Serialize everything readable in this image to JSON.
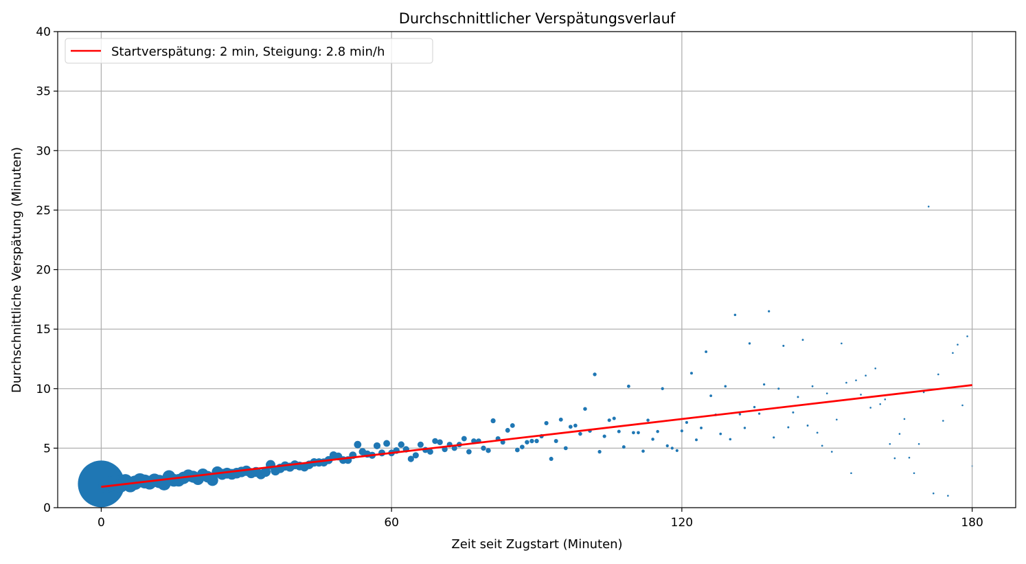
{
  "chart_data": {
    "type": "scatter",
    "title": "Durchschnittlicher Verspätungsverlauf",
    "xlabel": "Zeit seit Zugstart (Minuten)",
    "ylabel": "Durchschnittliche Verspätung (Minuten)",
    "xlim": [
      -9,
      189
    ],
    "ylim": [
      0,
      40
    ],
    "xticks": [
      0,
      60,
      120,
      180
    ],
    "yticks": [
      0,
      5,
      10,
      15,
      20,
      25,
      30,
      35,
      40
    ],
    "grid": true,
    "legend_position": "top-left",
    "colors": {
      "points": "#1f77b4",
      "fit_line": "#ff0000",
      "grid": "#b0b0b0"
    },
    "points": {
      "x": [
        0,
        1,
        2,
        3,
        4,
        5,
        6,
        7,
        8,
        9,
        10,
        11,
        12,
        13,
        14,
        15,
        16,
        17,
        18,
        19,
        20,
        21,
        22,
        23,
        24,
        25,
        26,
        27,
        28,
        29,
        30,
        31,
        32,
        33,
        34,
        35,
        36,
        37,
        38,
        39,
        40,
        41,
        42,
        43,
        44,
        45,
        46,
        47,
        48,
        49,
        50,
        51,
        52,
        53,
        54,
        55,
        56,
        57,
        58,
        59,
        60,
        61,
        62,
        63,
        64,
        65,
        66,
        67,
        68,
        69,
        70,
        71,
        72,
        73,
        74,
        75,
        76,
        77,
        78,
        79,
        80,
        81,
        82,
        83,
        84,
        85,
        86,
        87,
        88,
        89,
        90,
        91,
        92,
        93,
        94,
        95,
        96,
        97,
        98,
        99,
        100,
        101,
        102,
        103,
        104,
        105,
        106,
        107,
        108,
        109,
        110,
        111,
        112,
        113,
        114,
        115,
        116,
        117,
        118,
        119,
        120,
        121,
        122,
        123,
        124,
        125,
        126,
        127,
        128,
        129,
        130,
        131,
        132,
        133,
        134,
        135,
        136,
        137,
        138,
        139,
        140,
        141,
        142,
        143,
        144,
        145,
        146,
        147,
        148,
        149,
        150,
        151,
        152,
        153,
        154,
        155,
        156,
        157,
        158,
        159,
        160,
        161,
        162,
        163,
        164,
        165,
        166,
        167,
        168,
        169,
        170,
        171,
        172,
        173,
        174,
        175,
        176,
        177,
        178,
        179,
        180
      ],
      "y": [
        2.0,
        1.9,
        2.0,
        2.1,
        1.9,
        2.2,
        1.9,
        2.1,
        2.3,
        2.2,
        2.1,
        2.3,
        2.2,
        2.0,
        2.6,
        2.3,
        2.3,
        2.5,
        2.7,
        2.6,
        2.4,
        2.8,
        2.6,
        2.3,
        3.0,
        2.8,
        2.9,
        2.8,
        2.9,
        3.0,
        3.1,
        2.9,
        3.0,
        2.8,
        3.0,
        3.6,
        3.1,
        3.3,
        3.5,
        3.4,
        3.6,
        3.5,
        3.4,
        3.6,
        3.8,
        3.8,
        3.8,
        4.0,
        4.4,
        4.3,
        4.0,
        4.0,
        4.4,
        5.3,
        4.7,
        4.5,
        4.4,
        5.2,
        4.6,
        5.4,
        4.6,
        4.8,
        5.3,
        4.9,
        4.1,
        4.4,
        5.3,
        4.85,
        4.7,
        5.6,
        5.5,
        4.9,
        5.3,
        5.0,
        5.3,
        5.8,
        4.7,
        5.6,
        5.6,
        5.0,
        4.8,
        7.3,
        5.8,
        5.5,
        6.5,
        6.9,
        4.85,
        5.1,
        5.5,
        5.6,
        5.6,
        6.0,
        7.1,
        4.1,
        5.6,
        7.4,
        5.0,
        6.8,
        6.9,
        6.2,
        8.3,
        6.45,
        11.2,
        4.7,
        6.0,
        7.35,
        7.5,
        6.4,
        5.1,
        10.2,
        6.3,
        6.3,
        4.75,
        7.35,
        5.75,
        6.4,
        10.0,
        5.2,
        5.0,
        4.8,
        6.45,
        7.16,
        11.3,
        5.7,
        6.7,
        13.1,
        9.4,
        7.8,
        6.2,
        10.2,
        5.75,
        16.2,
        7.85,
        6.7,
        13.8,
        8.45,
        7.9,
        10.35,
        16.5,
        5.9,
        10.0,
        13.6,
        6.75,
        8.0,
        9.3,
        14.1,
        6.9,
        10.2,
        6.3,
        5.2,
        9.6,
        4.7,
        7.4,
        13.8,
        10.5,
        2.9,
        10.7,
        9.5,
        11.1,
        8.4,
        11.7,
        8.7,
        9.1,
        5.35,
        4.15,
        6.2,
        7.45,
        4.2,
        2.9,
        5.35,
        9.7,
        25.3,
        1.2,
        11.2,
        7.3,
        1.0,
        13.0,
        13.7,
        8.6,
        14.4,
        3.5
      ]
    },
    "fit_line": {
      "label": "Startverspätung: 2 min, Steigung: 2.8 min/h",
      "x": [
        0,
        180
      ],
      "y": [
        1.75,
        10.3
      ]
    }
  }
}
